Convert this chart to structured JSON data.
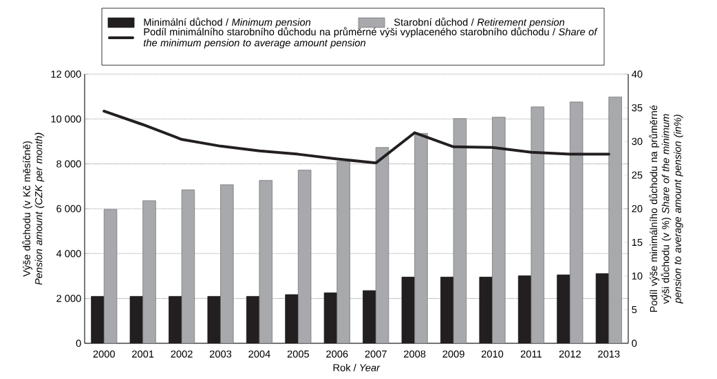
{
  "chart_data": {
    "type": "bar",
    "categories": [
      "2000",
      "2001",
      "2002",
      "2003",
      "2004",
      "2005",
      "2006",
      "2007",
      "2008",
      "2009",
      "2010",
      "2011",
      "2012",
      "2013"
    ],
    "series": [
      {
        "name": "Minimální důchod / *Minimum pension*",
        "color": "#231f20",
        "values": [
          2090,
          2090,
          2090,
          2090,
          2090,
          2170,
          2250,
          2350,
          2950,
          2950,
          2950,
          3010,
          3050,
          3110
        ]
      },
      {
        "name": "Starobní důchod / *Retirement pension*",
        "color": "#a7a9ac",
        "values": [
          5970,
          6360,
          6840,
          7070,
          7260,
          7720,
          8110,
          8730,
          9360,
          10020,
          10080,
          10540,
          10760,
          10990
        ]
      },
      {
        "name": "Podíl minimálního starobního důchodu na průměrné výši vyplaceného starobního důchodu / *Share of the minimum pension to average amount pension*",
        "type": "line",
        "axis": "y2",
        "color": "#231f20",
        "values": [
          34.5,
          32.5,
          30.3,
          29.3,
          28.6,
          28.1,
          27.4,
          26.8,
          31.3,
          29.2,
          29.1,
          28.4,
          28.1,
          28.1
        ]
      }
    ],
    "xlabel": "Rok / *Year*",
    "ylabel": "Výše důchodu (v Kč měsíčně) *Pension amount (CZK per month)*",
    "y2label": "Podíl výše minimálního důchodu na průměrné výši důchodu (v %) *Share of the minimum pension to average amount pension (in%)*",
    "ylim": [
      0,
      12000
    ],
    "yticks": [
      0,
      {
        "value": 2000,
        "label": "2 000"
      },
      {
        "value": 4000,
        "label": "4 000"
      },
      {
        "value": 6000,
        "label": "6 000"
      },
      {
        "value": 8000,
        "label": "8 000"
      },
      {
        "value": 10000,
        "label": "10 000"
      },
      {
        "value": 12000,
        "label": "12 000"
      }
    ],
    "y2lim": [
      0,
      40
    ],
    "y2ticks": [
      0,
      5,
      10,
      15,
      20,
      25,
      30,
      35,
      40
    ],
    "grid": "y",
    "legend": "top",
    "marker": "none",
    "line_style": "solid"
  }
}
